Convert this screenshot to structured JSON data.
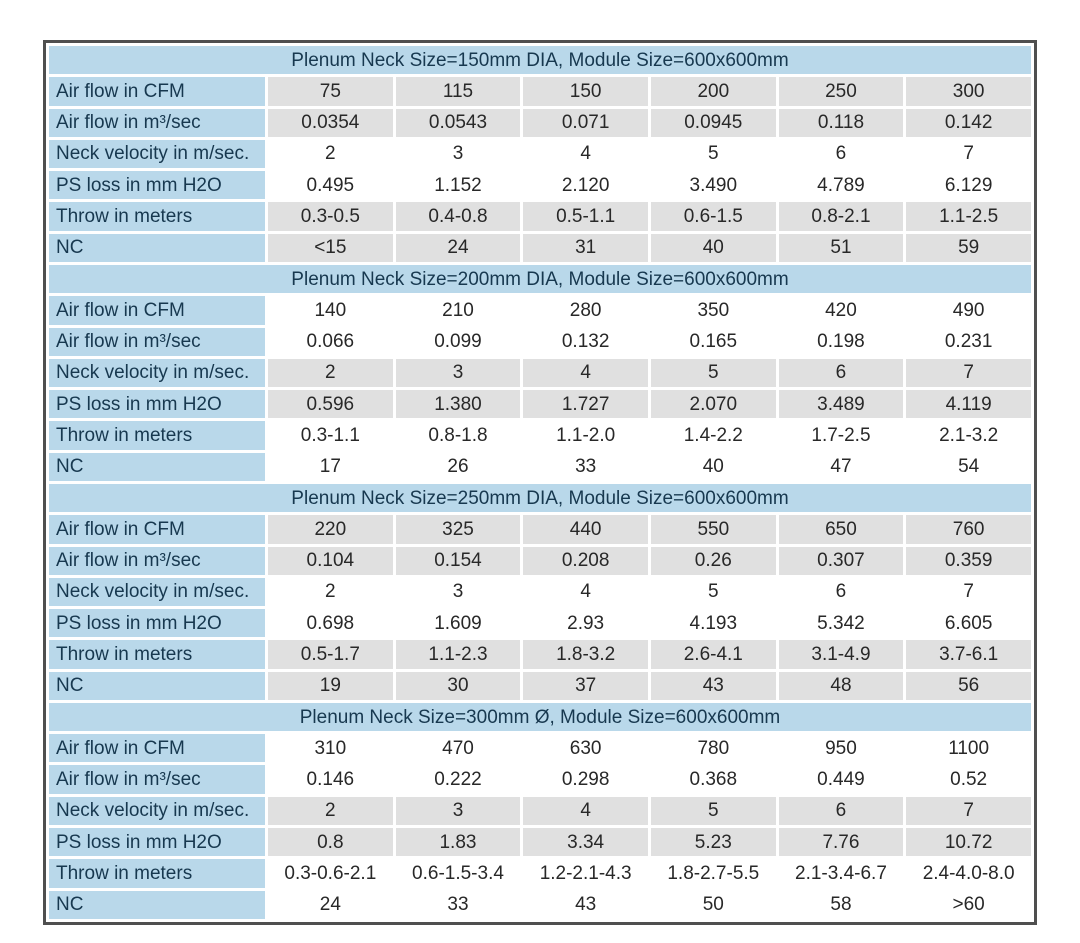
{
  "table": {
    "row_labels": [
      "Air flow in CFM",
      "Air flow in m³/sec",
      "Neck velocity in m/sec.",
      "PS loss in mm H2O",
      "Throw in meters",
      "NC"
    ],
    "sections": [
      {
        "header": "Plenum Neck Size=150mm DIA, Module Size=600x600mm",
        "shading": [
          "gray",
          "gray",
          "white",
          "white",
          "gray",
          "gray"
        ],
        "rows": [
          [
            "75",
            "115",
            "150",
            "200",
            "250",
            "300"
          ],
          [
            "0.0354",
            "0.0543",
            "0.071",
            "0.0945",
            "0.118",
            "0.142"
          ],
          [
            "2",
            "3",
            "4",
            "5",
            "6",
            "7"
          ],
          [
            "0.495",
            "1.152",
            "2.120",
            "3.490",
            "4.789",
            "6.129"
          ],
          [
            "0.3-0.5",
            "0.4-0.8",
            "0.5-1.1",
            "0.6-1.5",
            "0.8-2.1",
            "1.1-2.5"
          ],
          [
            "<15",
            "24",
            "31",
            "40",
            "51",
            "59"
          ]
        ]
      },
      {
        "header": "Plenum Neck Size=200mm DIA, Module Size=600x600mm",
        "shading": [
          "white",
          "white",
          "gray",
          "gray",
          "white",
          "white"
        ],
        "rows": [
          [
            "140",
            "210",
            "280",
            "350",
            "420",
            "490"
          ],
          [
            "0.066",
            "0.099",
            "0.132",
            "0.165",
            "0.198",
            "0.231"
          ],
          [
            "2",
            "3",
            "4",
            "5",
            "6",
            "7"
          ],
          [
            "0.596",
            "1.380",
            "1.727",
            "2.070",
            "3.489",
            "4.119"
          ],
          [
            "0.3-1.1",
            "0.8-1.8",
            "1.1-2.0",
            "1.4-2.2",
            "1.7-2.5",
            "2.1-3.2"
          ],
          [
            "17",
            "26",
            "33",
            "40",
            "47",
            "54"
          ]
        ]
      },
      {
        "header": "Plenum Neck Size=250mm DIA, Module Size=600x600mm",
        "shading": [
          "gray",
          "gray",
          "white",
          "white",
          "gray",
          "gray"
        ],
        "rows": [
          [
            "220",
            "325",
            "440",
            "550",
            "650",
            "760"
          ],
          [
            "0.104",
            "0.154",
            "0.208",
            "0.26",
            "0.307",
            "0.359"
          ],
          [
            "2",
            "3",
            "4",
            "5",
            "6",
            "7"
          ],
          [
            "0.698",
            "1.609",
            "2.93",
            "4.193",
            "5.342",
            "6.605"
          ],
          [
            "0.5-1.7",
            "1.1-2.3",
            "1.8-3.2",
            "2.6-4.1",
            "3.1-4.9",
            "3.7-6.1"
          ],
          [
            "19",
            "30",
            "37",
            "43",
            "48",
            "56"
          ]
        ]
      },
      {
        "header": "Plenum Neck Size=300mm Ø, Module Size=600x600mm",
        "shading": [
          "white",
          "white",
          "gray",
          "gray",
          "white",
          "white"
        ],
        "rows": [
          [
            "310",
            "470",
            "630",
            "780",
            "950",
            "1100"
          ],
          [
            "0.146",
            "0.222",
            "0.298",
            "0.368",
            "0.449",
            "0.52"
          ],
          [
            "2",
            "3",
            "4",
            "5",
            "6",
            "7"
          ],
          [
            "0.8",
            "1.83",
            "3.34",
            "5.23",
            "7.76",
            "10.72"
          ],
          [
            "0.3-0.6-2.1",
            "0.6-1.5-3.4",
            "1.2-2.1-4.3",
            "1.8-2.7-5.5",
            "2.1-3.4-6.7",
            "2.4-4.0-8.0"
          ],
          [
            "24",
            "33",
            "43",
            "50",
            "58",
            ">60"
          ]
        ]
      }
    ],
    "colors": {
      "header_bg": "#b9d8ea",
      "label_bg": "#b9d8ea",
      "cell_gray": "#e0e0e0",
      "cell_white": "#ffffff",
      "frame_border": "#4f4f4f",
      "gap": "#ffffff",
      "label_text": "#17384f",
      "value_text": "#282828"
    }
  }
}
